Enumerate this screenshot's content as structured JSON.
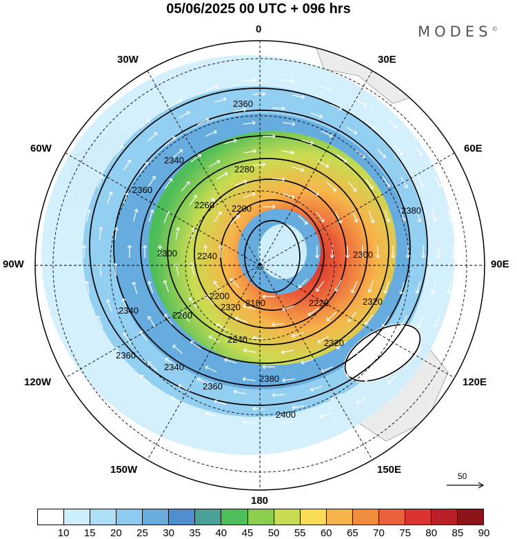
{
  "header": {
    "title": "05/06/2025  00 UTC  + 096 hrs",
    "brand": "MODES",
    "brand_mark": "©"
  },
  "map": {
    "projection": "polar-stereographic-south",
    "longitude_labels": {
      "top": "0",
      "bottom": "180",
      "left": "90W",
      "right": "90E",
      "upper_left": "30W",
      "upper_right": "30E",
      "left_upper": "60W",
      "right_upper": "60E",
      "lower_left": "120W",
      "lower_right": "120E",
      "bottom_left": "150W",
      "bottom_right": "150E"
    },
    "contour_labels": [
      "2360",
      "2340",
      "2280",
      "2260",
      "2200",
      "2360",
      "2380",
      "2300",
      "2240",
      "2320",
      "2220",
      "2180",
      "2260",
      "2240",
      "2320",
      "2340",
      "2360",
      "2380",
      "2400",
      "2360",
      "2340",
      "2320",
      "2200",
      "2300"
    ],
    "reference_vector": "50",
    "colors": {
      "land": "#ececec",
      "wind_arrows": "#ffffff"
    }
  },
  "colorbar": {
    "ticks": [
      "10",
      "15",
      "20",
      "25",
      "30",
      "35",
      "40",
      "45",
      "50",
      "55",
      "60",
      "65",
      "70",
      "75",
      "80",
      "85",
      "90"
    ],
    "colors": [
      "#ffffff",
      "#cfeefc",
      "#aedff7",
      "#8ccbef",
      "#67acdf",
      "#4f8fcf",
      "#4aa198",
      "#4dbd5a",
      "#8ccf4f",
      "#c8dc52",
      "#f7dc55",
      "#f6b34a",
      "#f08c3c",
      "#e9603a",
      "#d9322f",
      "#bb1f28",
      "#8e1419"
    ]
  }
}
